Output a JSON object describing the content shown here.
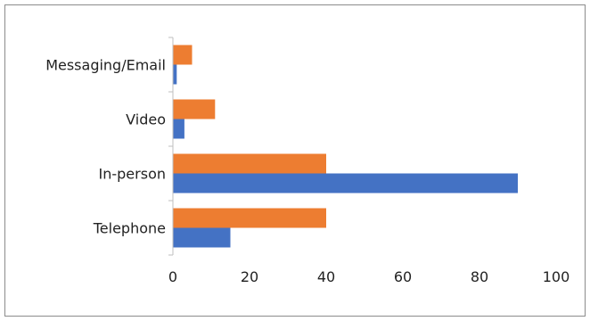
{
  "chart_data": {
    "type": "bar",
    "orientation": "horizontal",
    "categories": [
      "Messaging/Email",
      "Video",
      "In-person",
      "Telephone"
    ],
    "series": [
      {
        "values": [
          5,
          11,
          40,
          40
        ],
        "color": "#ED7D31"
      },
      {
        "values": [
          1,
          3,
          90,
          15
        ],
        "color": "#4472C4"
      }
    ],
    "xlim": [
      0,
      100
    ],
    "xticks": [
      "0",
      "20",
      "40",
      "60",
      "80",
      "100"
    ],
    "title": "",
    "xlabel": "",
    "ylabel": "",
    "grid": false,
    "legend": "none"
  }
}
